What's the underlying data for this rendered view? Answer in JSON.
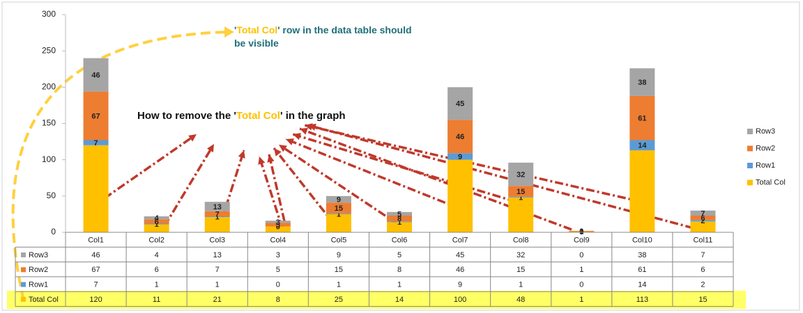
{
  "chart_data": {
    "type": "bar",
    "stacked": true,
    "categories": [
      "Col1",
      "Col2",
      "Col3",
      "Col4",
      "Col5",
      "Col6",
      "Col7",
      "Col8",
      "Col9",
      "Col10",
      "Col11"
    ],
    "series": [
      {
        "name": "Total Col",
        "color": "#FFC000",
        "values": [
          120,
          11,
          21,
          8,
          25,
          14,
          100,
          48,
          1,
          113,
          15
        ],
        "data_labels": false
      },
      {
        "name": "Row1",
        "color": "#5B9BD5",
        "values": [
          7,
          1,
          1,
          0,
          1,
          1,
          9,
          1,
          0,
          14,
          2
        ],
        "data_labels": true
      },
      {
        "name": "Row2",
        "color": "#ED7D31",
        "values": [
          67,
          6,
          7,
          5,
          15,
          8,
          46,
          15,
          1,
          61,
          6
        ],
        "data_labels": true
      },
      {
        "name": "Row3",
        "color": "#A5A5A5",
        "values": [
          46,
          4,
          13,
          3,
          9,
          5,
          45,
          32,
          0,
          38,
          7
        ],
        "data_labels": true
      }
    ],
    "ylim": [
      0,
      300
    ],
    "yticks": [
      0,
      50,
      100,
      150,
      200,
      250,
      300
    ],
    "grid": false,
    "legend": "right",
    "data_table": true,
    "annotations": [
      {
        "lines": [
          [
            "'",
            "Total Col",
            "' row in the data table should"
          ],
          [
            "be visible"
          ]
        ]
      },
      {
        "lines": [
          [
            "How to remove the '",
            "Total Col",
            "' in the graph"
          ]
        ]
      }
    ]
  }
}
